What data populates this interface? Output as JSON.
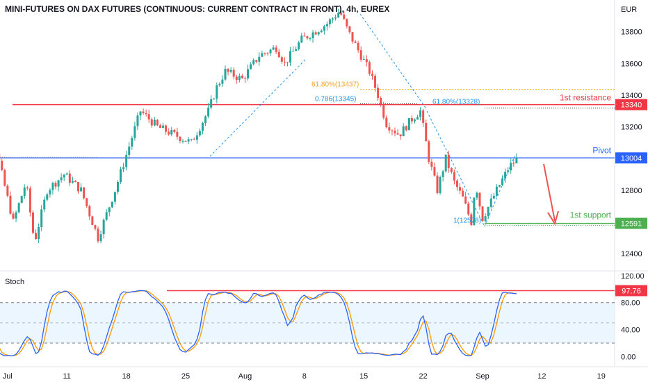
{
  "title": "MINI-FUTURES ON DAX FUTURES (CONTINUOUS: CURRENT CONTRACT IN FRONT), 4h, EUREX",
  "currency": "EUR",
  "colors": {
    "bull": "#26a69a",
    "bear": "#ef5350",
    "resistance": "#f23645",
    "pivot": "#2962ff",
    "support": "#4caf50",
    "fib_orange": "#f5a623",
    "fib_blue": "#2196f3",
    "stoch_k": "#2962ff",
    "stoch_d": "#ff9800",
    "stoch_band": "#e3f2fd"
  },
  "chart_data": [
    {
      "type": "candlestick",
      "title": "MINI-FUTURES ON DAX FUTURES (CONTINUOUS: CURRENT CONTRACT IN FRONT), 4h, EUREX",
      "ylabel": "EUR",
      "ylim": [
        12300,
        14000
      ],
      "y_ticks": [
        12400,
        12600,
        12800,
        13000,
        13200,
        13400,
        13600,
        13800
      ],
      "x_ticks": [
        "Jul",
        "11",
        "18",
        "25",
        "Aug",
        "8",
        "15",
        "22",
        "Sep",
        "12",
        "19"
      ],
      "grid": false,
      "levels": [
        {
          "label": "1st resistance",
          "value": 13340
        },
        {
          "label": "Pivot",
          "value": 13004
        },
        {
          "label": "1st support",
          "value": 12591
        }
      ],
      "fib_labels": [
        {
          "text": "61.80%(13437)",
          "value": 13437
        },
        {
          "text": "0.786(13345)",
          "value": 13345
        },
        {
          "text": "61.80%(13328)",
          "value": 13328
        },
        {
          "text": "1(12578)",
          "value": 12578
        }
      ],
      "waypoints": [
        {
          "d": 0,
          "p": 13150
        },
        {
          "d": 1.5,
          "p": 13300
        },
        {
          "d": 3,
          "p": 13050
        },
        {
          "d": 5,
          "p": 12600
        },
        {
          "d": 6.5,
          "p": 12850
        },
        {
          "d": 7.5,
          "p": 12470
        },
        {
          "d": 9,
          "p": 12800
        },
        {
          "d": 11,
          "p": 12900
        },
        {
          "d": 13,
          "p": 12800
        },
        {
          "d": 15,
          "p": 12500
        },
        {
          "d": 17,
          "p": 12800
        },
        {
          "d": 18.5,
          "p": 13050
        },
        {
          "d": 20,
          "p": 13300
        },
        {
          "d": 22,
          "p": 13200
        },
        {
          "d": 24,
          "p": 13150
        },
        {
          "d": 26,
          "p": 13100
        },
        {
          "d": 28,
          "p": 13300
        },
        {
          "d": 29,
          "p": 13450
        },
        {
          "d": 30,
          "p": 13550
        },
        {
          "d": 32,
          "p": 13500
        },
        {
          "d": 34,
          "p": 13650
        },
        {
          "d": 36,
          "p": 13700
        },
        {
          "d": 37,
          "p": 13600
        },
        {
          "d": 39,
          "p": 13750
        },
        {
          "d": 42,
          "p": 13850
        },
        {
          "d": 43.5,
          "p": 13930
        },
        {
          "d": 44.5,
          "p": 13800
        },
        {
          "d": 45.5,
          "p": 13700
        },
        {
          "d": 47,
          "p": 13550
        },
        {
          "d": 48,
          "p": 13400
        },
        {
          "d": 49,
          "p": 13220
        },
        {
          "d": 50.5,
          "p": 13150
        },
        {
          "d": 52,
          "p": 13250
        },
        {
          "d": 53,
          "p": 13300
        },
        {
          "d": 54,
          "p": 13000
        },
        {
          "d": 55,
          "p": 12800
        },
        {
          "d": 56,
          "p": 13000
        },
        {
          "d": 57,
          "p": 12850
        },
        {
          "d": 58,
          "p": 12750
        },
        {
          "d": 59,
          "p": 12600
        },
        {
          "d": 59.5,
          "p": 12850
        },
        {
          "d": 60.3,
          "p": 12620
        },
        {
          "d": 62,
          "p": 12800
        },
        {
          "d": 63.5,
          "p": 12950
        },
        {
          "d": 64.5,
          "p": 13000
        }
      ]
    },
    {
      "type": "line",
      "title": "Stoch",
      "ylim": [
        -15,
        125
      ],
      "y_ticks": [
        0.0,
        40.0,
        80.0,
        120.0
      ],
      "bands": [
        20,
        80
      ],
      "value_label": "97.76",
      "series": []
    }
  ]
}
